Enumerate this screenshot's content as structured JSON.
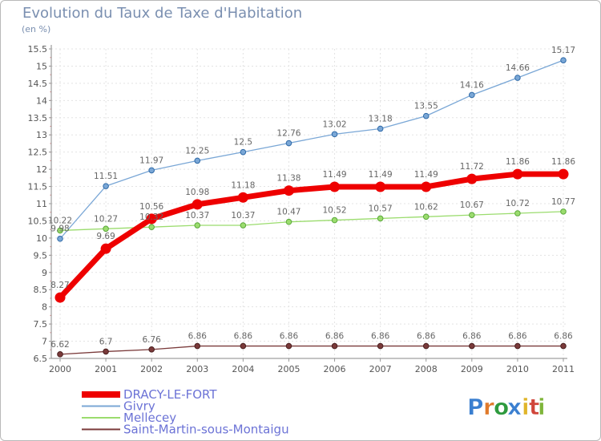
{
  "header": {
    "title": "Evolution du Taux de Taxe d'Habitation",
    "subtitle": "(en %)"
  },
  "logo": {
    "text": "Proxiti",
    "letters": [
      "P",
      "r",
      "o",
      "x",
      "i",
      "t",
      "i"
    ],
    "colors": [
      "#3a7fd0",
      "#e07a2a",
      "#2e9a3e",
      "#3a7fd0",
      "#e0b52a",
      "#d0453a",
      "#7fb53a"
    ]
  },
  "chart_data": {
    "type": "line",
    "categories": [
      "2000",
      "2001",
      "2002",
      "2003",
      "2004",
      "2005",
      "2006",
      "2007",
      "2008",
      "2009",
      "2010",
      "2011"
    ],
    "ylim": [
      6.5,
      15.5
    ],
    "yticks": [
      "6.5",
      "7",
      "7.5",
      "8",
      "8.5",
      "9",
      "9.5",
      "10",
      "10.5",
      "11",
      "11.5",
      "12",
      "12.5",
      "13",
      "13.5",
      "14",
      "14.5",
      "15",
      "15.5"
    ],
    "xlabel": "",
    "ylabel": "",
    "series": [
      {
        "name": "DRACY-LE-FORT",
        "color": "#ee0000",
        "values": [
          8.27,
          9.69,
          10.56,
          10.98,
          11.18,
          11.38,
          11.49,
          11.49,
          11.49,
          11.72,
          11.86,
          11.86
        ],
        "labels": [
          "8.27",
          "9.69",
          "10.56",
          "10.98",
          "11.18",
          "11.38",
          "11.49",
          "11.49",
          "11.49",
          "11.72",
          "11.86",
          "11.86"
        ]
      },
      {
        "name": "Givry",
        "color": "#7aa7d6",
        "values": [
          9.98,
          11.51,
          11.97,
          12.25,
          12.5,
          12.76,
          13.02,
          13.18,
          13.55,
          14.16,
          14.66,
          15.17
        ],
        "labels": [
          "9.98",
          "11.51",
          "11.97",
          "12.25",
          "12.5",
          "12.76",
          "13.02",
          "13.18",
          "13.55",
          "14.16",
          "14.66",
          "15.17"
        ]
      },
      {
        "name": "Mellecey",
        "color": "#9bdc6e",
        "values": [
          10.22,
          10.27,
          10.32,
          10.37,
          10.37,
          10.47,
          10.52,
          10.57,
          10.62,
          10.67,
          10.72,
          10.77
        ],
        "labels": [
          "10.22",
          "10.27",
          "10.32",
          "10.37",
          "10.37",
          "10.47",
          "10.52",
          "10.57",
          "10.62",
          "10.67",
          "10.72",
          "10.77"
        ]
      },
      {
        "name": "Saint-Martin-sous-Montaigu",
        "color": "#7a3a3a",
        "values": [
          6.62,
          6.7,
          6.76,
          6.86,
          6.86,
          6.86,
          6.86,
          6.86,
          6.86,
          6.86,
          6.86,
          6.86
        ],
        "labels": [
          "6.62",
          "6.7",
          "6.76",
          "6.86",
          "6.86",
          "6.86",
          "6.86",
          "6.86",
          "6.86",
          "6.86",
          "6.86",
          "6.86"
        ]
      }
    ],
    "legend": [
      "DRACY-LE-FORT",
      "Givry",
      "Mellecey",
      "Saint-Martin-sous-Montaigu"
    ],
    "legend_position": "bottom-left"
  }
}
